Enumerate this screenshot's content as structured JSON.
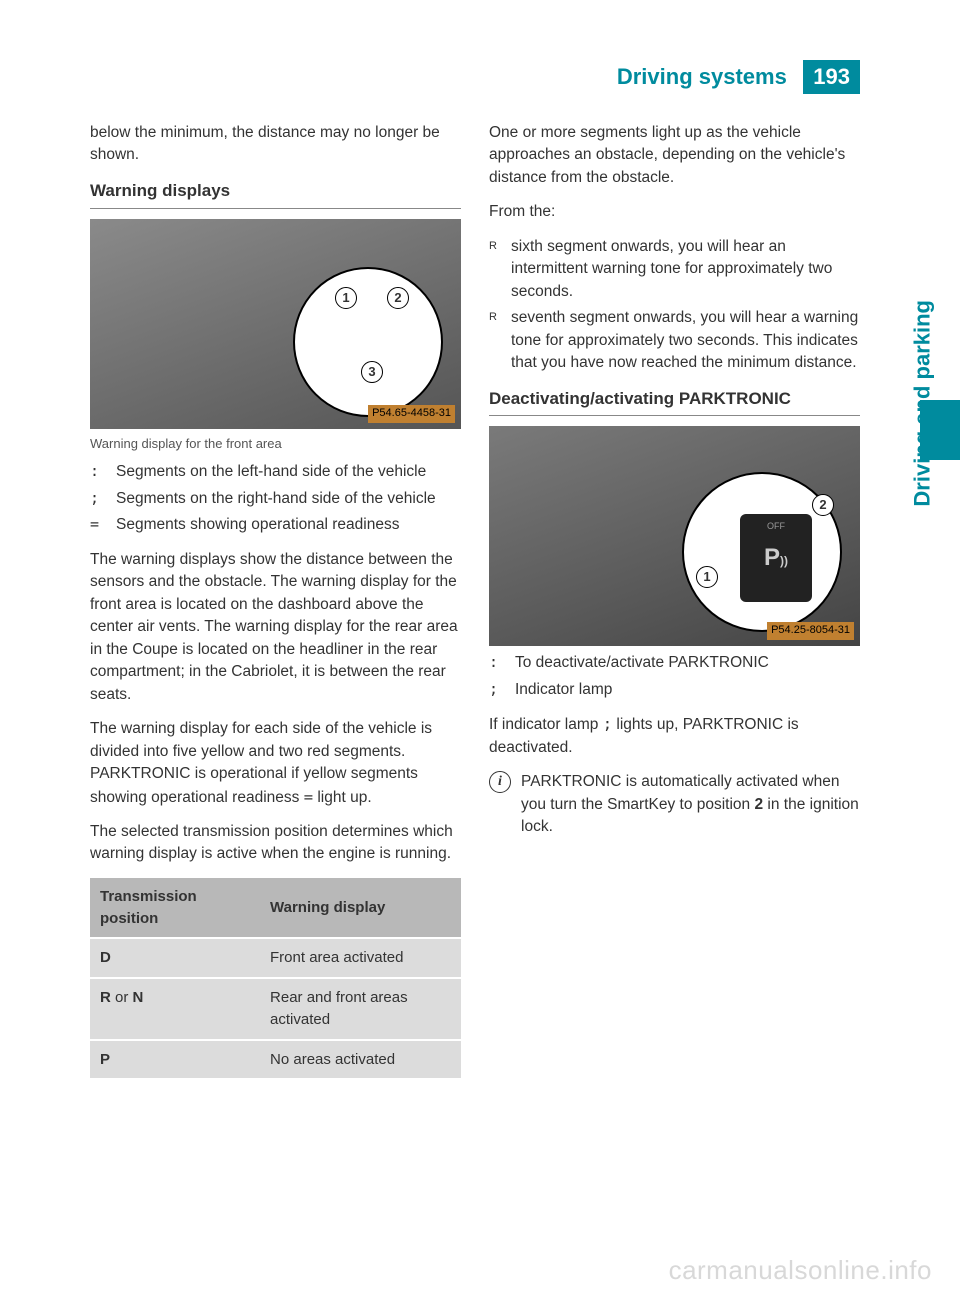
{
  "header": {
    "section_title": "Driving systems",
    "page_number": "193"
  },
  "side_tab": {
    "label": "Driving and parking"
  },
  "left": {
    "intro": "below the minimum, the distance may no longer be shown.",
    "heading1": "Warning displays",
    "fig1_tag": "P54.65-4458-31",
    "fig1_caption": "Warning display for the front area",
    "legend": [
      {
        "marker": ":",
        "text": "Segments on the left-hand side of the vehicle"
      },
      {
        "marker": ";",
        "text": "Segments on the right-hand side of the vehicle"
      },
      {
        "marker": "=",
        "text": "Segments showing operational readiness"
      }
    ],
    "para1": "The warning displays show the distance between the sensors and the obstacle. The warning display for the front area is located on the dashboard above the center air vents. The warning display for the rear area in the Coupe is located on the headliner in the rear compartment; in the Cabriolet, it is between the rear seats.",
    "para2_a": "The warning display for each side of the vehicle is divided into five yellow and two red segments. PARKTRONIC is operational if yellow segments showing operational readiness ",
    "para2_marker": "=",
    "para2_b": " light up.",
    "para3": "The selected transmission position determines which warning display is active when the engine is running.",
    "table": {
      "col1_header": "Transmission position",
      "col2_header": "Warning display",
      "rows": [
        {
          "c1_html": "<b>D</b>",
          "c2": "Front area activated"
        },
        {
          "c1_html": "<b>R</b> or <b>N</b>",
          "c2": "Rear and front areas activated"
        },
        {
          "c1_html": "<b>P</b>",
          "c2": "No areas activated"
        }
      ]
    }
  },
  "right": {
    "para1": "One or more segments light up as the vehicle approaches an obstacle, depending on the vehicle's distance from the obstacle.",
    "from_label": "From the:",
    "bullets": [
      "sixth segment onwards, you will hear an intermittent warning tone for approximately two seconds.",
      "seventh segment onwards, you will hear a warning tone for approximately two seconds. This indicates that you have now reached the minimum distance."
    ],
    "heading2": "Deactivating/activating PARKTRONIC",
    "fig2_tag": "P54.25-8054-31",
    "legend2": [
      {
        "marker": ":",
        "text": "To deactivate/activate PARKTRONIC"
      },
      {
        "marker": ";",
        "text": "Indicator lamp"
      }
    ],
    "para2_a": "If indicator lamp ",
    "para2_marker": ";",
    "para2_b": " lights up, PARKTRONIC is deactivated.",
    "info_a": "PARKTRONIC is automatically activated when you turn the SmartKey to position ",
    "info_bold": "2",
    "info_b": " in the ignition lock."
  },
  "watermark": "carmanualsonline.info",
  "colors": {
    "accent": "#008b9e",
    "text": "#333333",
    "table_header_bg": "#b8b8b8",
    "table_cell_bg": "#dcdcdc"
  }
}
